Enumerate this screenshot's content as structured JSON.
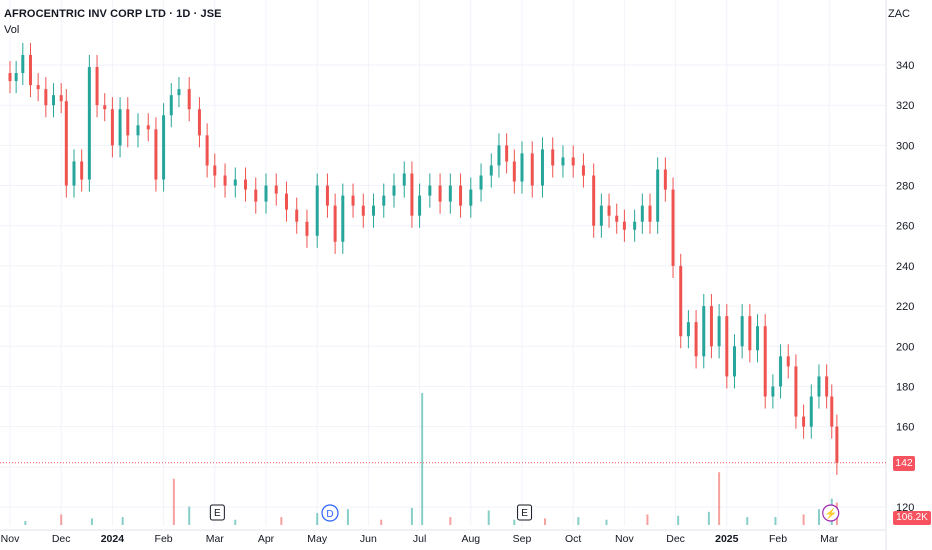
{
  "header": {
    "title": "AFROCENTRIC INV CORP LTD · 1D · JSE",
    "volume_label": "Vol",
    "currency": "ZAC"
  },
  "markers": {
    "price_badge": "142",
    "volume_badge": "106.2K"
  },
  "colors": {
    "up": "#26a69a",
    "down": "#ef5350",
    "grid": "#f0f3fa",
    "axis_text": "#131722",
    "badge": "#f7525f",
    "dividend": "#2962ff",
    "flash": "#9c27b0"
  },
  "chart_data": {
    "type": "candlestick",
    "title": "AFROCENTRIC INV CORP LTD · 1D · JSE",
    "ylabel": "ZAC",
    "ylim": [
      110,
      352
    ],
    "y_ticks": [
      120,
      140,
      160,
      180,
      200,
      220,
      240,
      260,
      280,
      300,
      320,
      340
    ],
    "x_ticks": [
      "Nov",
      "Dec",
      "2024",
      "Feb",
      "Mar",
      "Apr",
      "May",
      "Jun",
      "Jul",
      "Aug",
      "Sep",
      "Oct",
      "Nov",
      "Dec",
      "2025",
      "Feb",
      "Mar"
    ],
    "x_tick_pos": [
      0.0,
      1.0,
      2.0,
      3.0,
      4.0,
      5.0,
      6.0,
      7.0,
      8.0,
      9.0,
      10.0,
      11.0,
      12.0,
      13.0,
      14.0,
      15.0,
      16.0
    ],
    "last_price": 142,
    "events": [
      {
        "label": "E",
        "month": 4.05,
        "kind": "earnings"
      },
      {
        "label": "D",
        "month": 6.25,
        "kind": "dividend"
      },
      {
        "label": "E",
        "month": 10.05,
        "kind": "earnings"
      },
      {
        "label": "⚡",
        "month": 16.03,
        "kind": "flash"
      }
    ],
    "series": [
      {
        "name": "Close",
        "values": [
          [
            0.0,
            332
          ],
          [
            0.12,
            336
          ],
          [
            0.25,
            345
          ],
          [
            0.4,
            330
          ],
          [
            0.55,
            328
          ],
          [
            0.7,
            320
          ],
          [
            0.85,
            325
          ],
          [
            1.0,
            322
          ],
          [
            1.1,
            280
          ],
          [
            1.25,
            292
          ],
          [
            1.4,
            283
          ],
          [
            1.55,
            339
          ],
          [
            1.7,
            320
          ],
          [
            1.85,
            318
          ],
          [
            2.0,
            300
          ],
          [
            2.15,
            318
          ],
          [
            2.3,
            305
          ],
          [
            2.5,
            310
          ],
          [
            2.7,
            308
          ],
          [
            2.85,
            283
          ],
          [
            3.0,
            315
          ],
          [
            3.15,
            325
          ],
          [
            3.3,
            328
          ],
          [
            3.5,
            318
          ],
          [
            3.7,
            305
          ],
          [
            3.85,
            290
          ],
          [
            4.0,
            285
          ],
          [
            4.2,
            280
          ],
          [
            4.4,
            283
          ],
          [
            4.6,
            278
          ],
          [
            4.8,
            272
          ],
          [
            5.0,
            280
          ],
          [
            5.2,
            276
          ],
          [
            5.4,
            268
          ],
          [
            5.6,
            262
          ],
          [
            5.8,
            255
          ],
          [
            6.0,
            280
          ],
          [
            6.2,
            270
          ],
          [
            6.35,
            252
          ],
          [
            6.5,
            275
          ],
          [
            6.7,
            270
          ],
          [
            6.9,
            265
          ],
          [
            7.1,
            270
          ],
          [
            7.3,
            275
          ],
          [
            7.5,
            280
          ],
          [
            7.7,
            286
          ],
          [
            7.85,
            265
          ],
          [
            8.0,
            275
          ],
          [
            8.2,
            280
          ],
          [
            8.4,
            272
          ],
          [
            8.6,
            280
          ],
          [
            8.8,
            270
          ],
          [
            9.0,
            278
          ],
          [
            9.2,
            285
          ],
          [
            9.4,
            290
          ],
          [
            9.55,
            300
          ],
          [
            9.7,
            292
          ],
          [
            9.85,
            282
          ],
          [
            10.0,
            296
          ],
          [
            10.2,
            280
          ],
          [
            10.4,
            298
          ],
          [
            10.6,
            290
          ],
          [
            10.8,
            294
          ],
          [
            11.0,
            290
          ],
          [
            11.2,
            285
          ],
          [
            11.4,
            260
          ],
          [
            11.55,
            270
          ],
          [
            11.7,
            265
          ],
          [
            11.85,
            262
          ],
          [
            12.0,
            258
          ],
          [
            12.2,
            262
          ],
          [
            12.35,
            270
          ],
          [
            12.5,
            262
          ],
          [
            12.65,
            288
          ],
          [
            12.8,
            278
          ],
          [
            12.95,
            240
          ],
          [
            13.1,
            205
          ],
          [
            13.25,
            212
          ],
          [
            13.4,
            195
          ],
          [
            13.55,
            220
          ],
          [
            13.7,
            200
          ],
          [
            13.85,
            215
          ],
          [
            14.0,
            185
          ],
          [
            14.15,
            200
          ],
          [
            14.3,
            215
          ],
          [
            14.45,
            198
          ],
          [
            14.6,
            210
          ],
          [
            14.75,
            175
          ],
          [
            14.9,
            180
          ],
          [
            15.05,
            195
          ],
          [
            15.2,
            190
          ],
          [
            15.35,
            165
          ],
          [
            15.5,
            160
          ],
          [
            15.65,
            175
          ],
          [
            15.8,
            185
          ],
          [
            15.95,
            175
          ],
          [
            16.05,
            160
          ],
          [
            16.15,
            142
          ]
        ]
      },
      {
        "name": "Vol",
        "values": [
          [
            0.3,
            3
          ],
          [
            1.0,
            8
          ],
          [
            1.6,
            5
          ],
          [
            2.2,
            6
          ],
          [
            3.2,
            35
          ],
          [
            3.5,
            14
          ],
          [
            4.4,
            4
          ],
          [
            5.3,
            6
          ],
          [
            6.0,
            9
          ],
          [
            6.6,
            12
          ],
          [
            7.25,
            4
          ],
          [
            7.85,
            13
          ],
          [
            8.05,
            100
          ],
          [
            8.6,
            6
          ],
          [
            9.35,
            11
          ],
          [
            9.85,
            4
          ],
          [
            10.45,
            5
          ],
          [
            11.1,
            6
          ],
          [
            11.65,
            4
          ],
          [
            12.45,
            8
          ],
          [
            13.05,
            7
          ],
          [
            13.65,
            10
          ],
          [
            13.85,
            40
          ],
          [
            14.4,
            6
          ],
          [
            14.95,
            6
          ],
          [
            15.5,
            8
          ],
          [
            15.8,
            12
          ],
          [
            16.05,
            20
          ],
          [
            16.15,
            17
          ]
        ]
      }
    ]
  }
}
